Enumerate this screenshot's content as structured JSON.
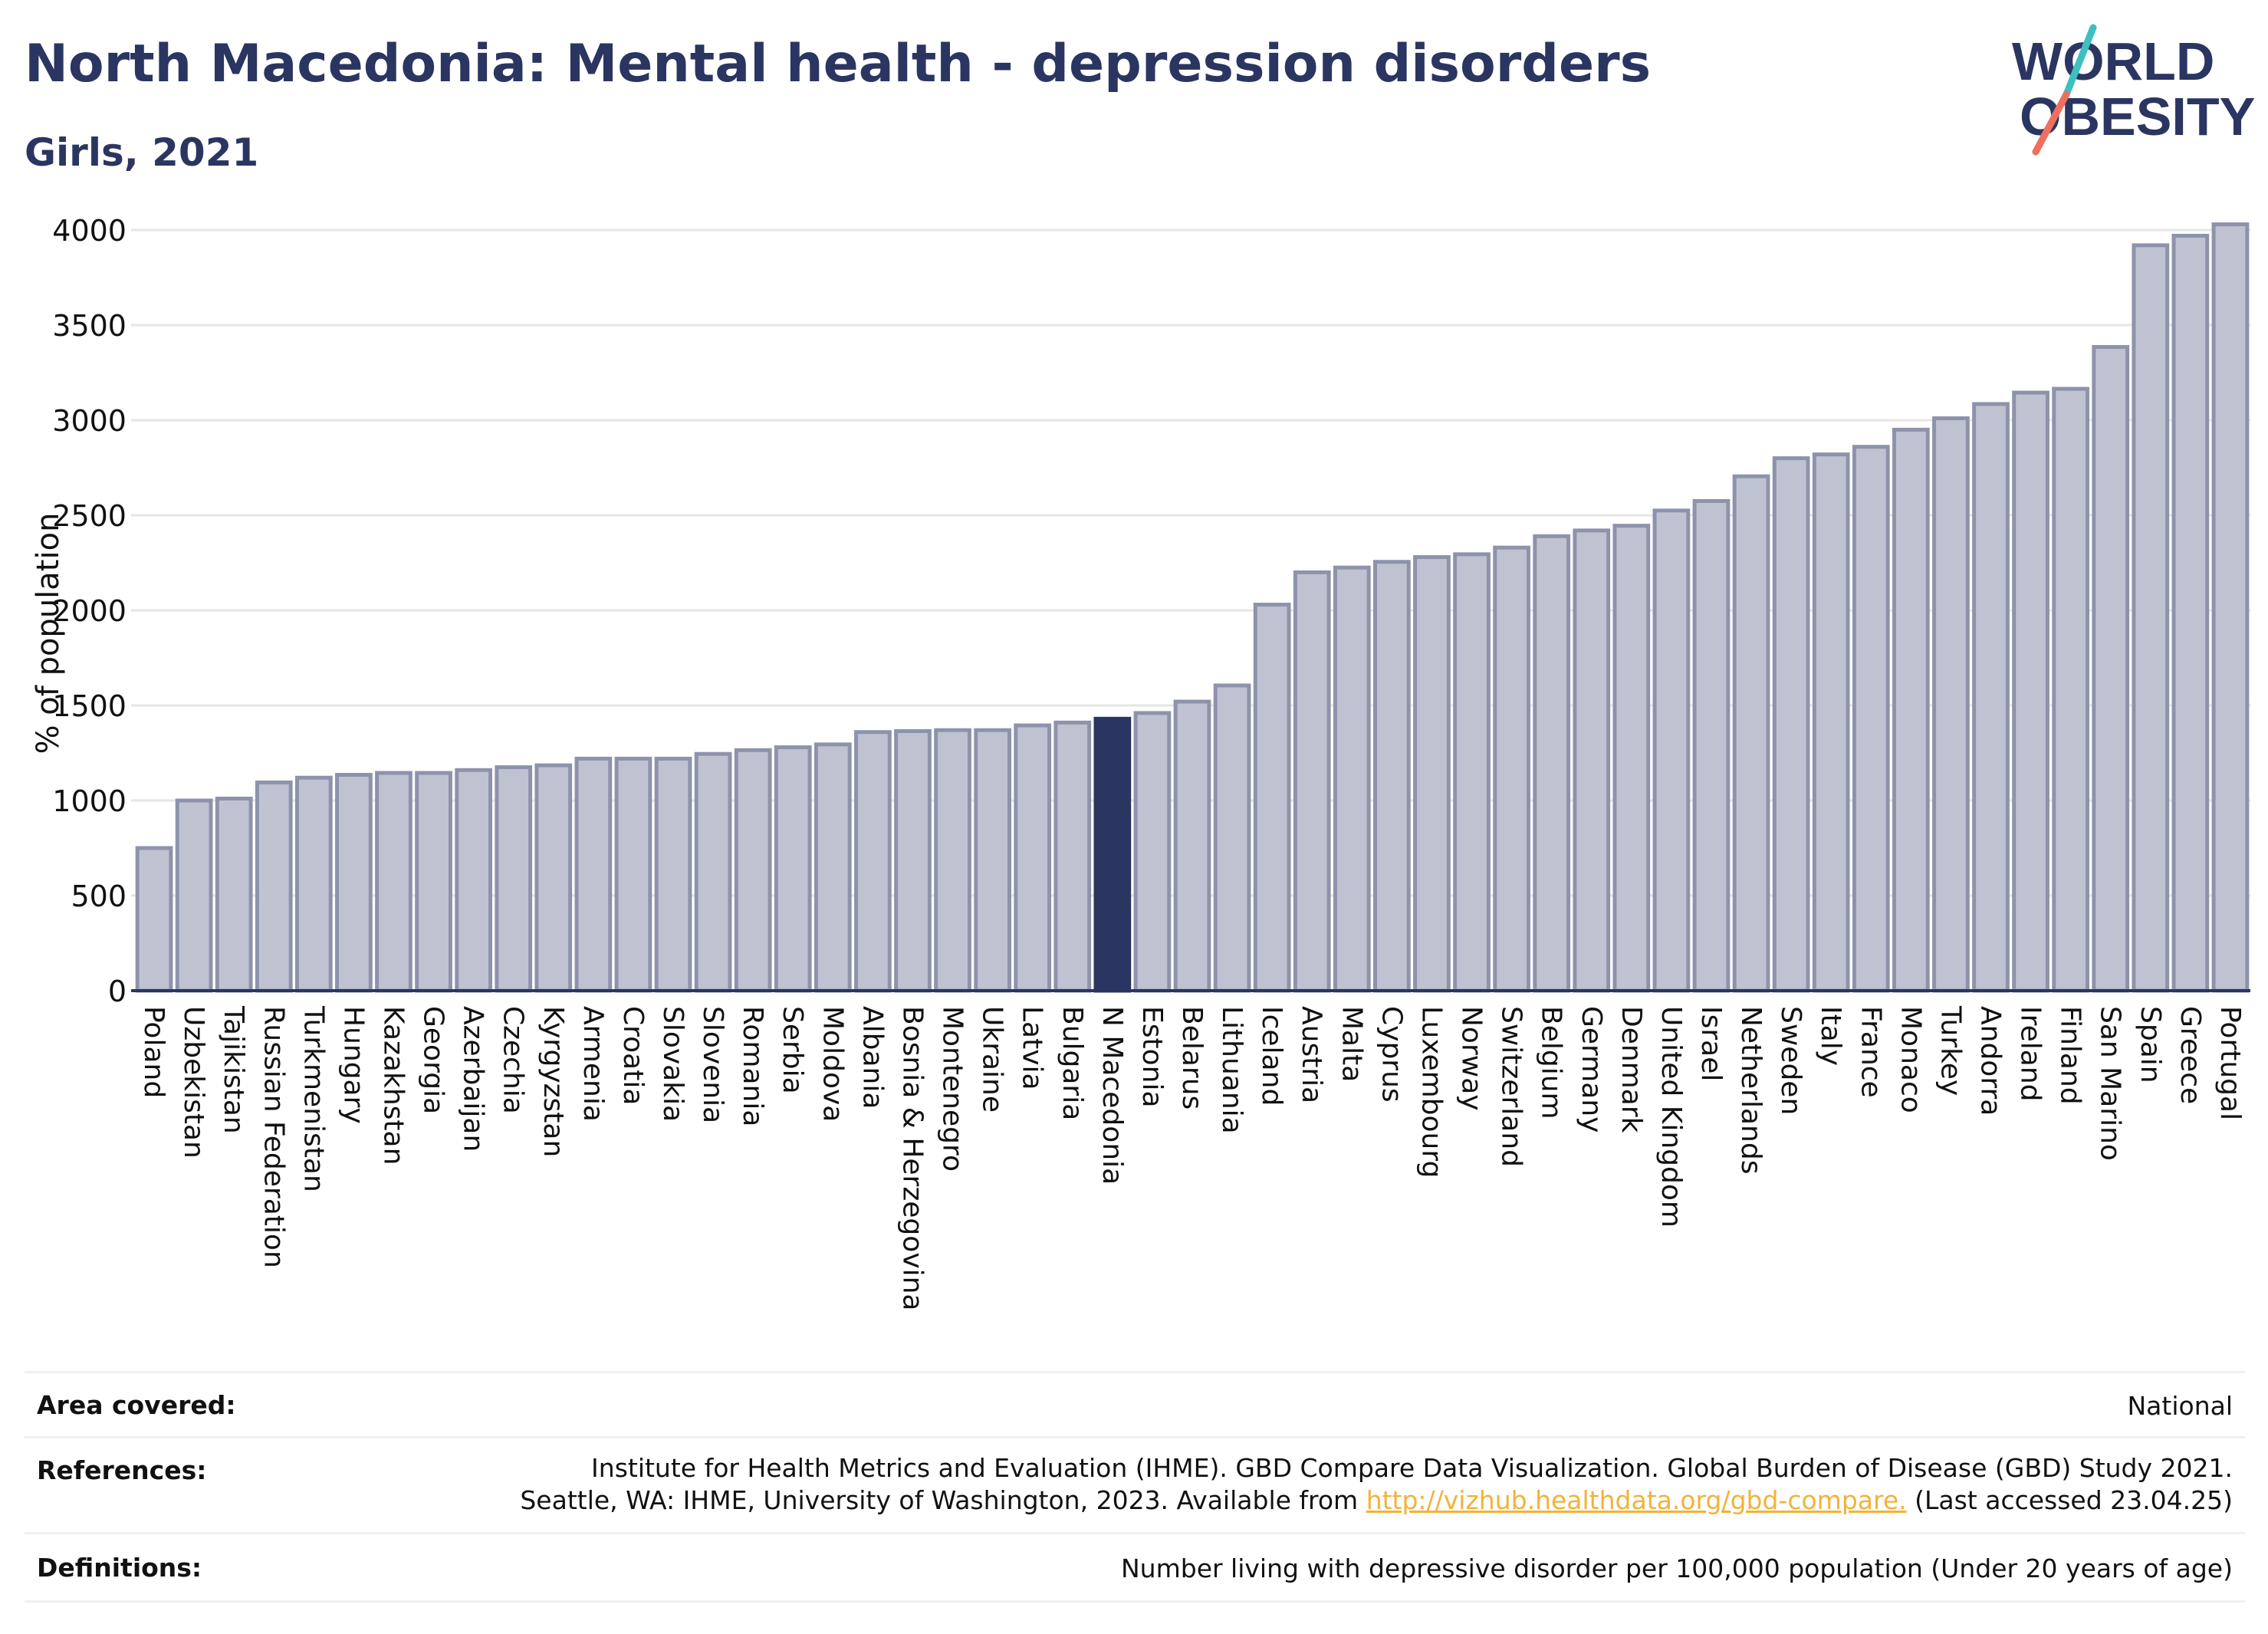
{
  "header": {
    "title": "North Macedonia: Mental health - depression disorders",
    "subtitle": "Girls, 2021"
  },
  "logo": {
    "line1": "WORLD",
    "line2": "OBESITY"
  },
  "chart_data": {
    "type": "bar",
    "ylabel": "% of population",
    "xlabel": "",
    "ylim": [
      0,
      4000
    ],
    "yticks": [
      0,
      500,
      1000,
      1500,
      2000,
      2500,
      3000,
      3500,
      4000
    ],
    "grid": true,
    "highlight": "N Macedonia",
    "colors": {
      "bar": "#bfc3d1",
      "bar_border": "#8d93ab",
      "highlight": "#2b3561",
      "grid": "#e6e6e6",
      "axis": "#2b3561"
    },
    "categories": [
      "Poland",
      "Uzbekistan",
      "Tajikistan",
      "Russian Federation",
      "Turkmenistan",
      "Hungary",
      "Kazakhstan",
      "Georgia",
      "Azerbaijan",
      "Czechia",
      "Kyrgyzstan",
      "Armenia",
      "Croatia",
      "Slovakia",
      "Slovenia",
      "Romania",
      "Serbia",
      "Moldova",
      "Albania",
      "Bosnia & Herzegovina",
      "Montenegro",
      "Ukraine",
      "Latvia",
      "Bulgaria",
      "N Macedonia",
      "Estonia",
      "Belarus",
      "Lithuania",
      "Iceland",
      "Austria",
      "Malta",
      "Cyprus",
      "Luxembourg",
      "Norway",
      "Switzerland",
      "Belgium",
      "Germany",
      "Denmark",
      "United Kingdom",
      "Israel",
      "Netherlands",
      "Sweden",
      "Italy",
      "France",
      "Monaco",
      "Turkey",
      "Andorra",
      "Ireland",
      "Finland",
      "San Marino",
      "Spain",
      "Greece",
      "Portugal"
    ],
    "values": [
      750,
      1000,
      1010,
      1095,
      1120,
      1135,
      1145,
      1145,
      1160,
      1175,
      1185,
      1220,
      1220,
      1220,
      1245,
      1265,
      1280,
      1295,
      1360,
      1365,
      1370,
      1370,
      1395,
      1410,
      1430,
      1460,
      1520,
      1605,
      2030,
      2200,
      2225,
      2255,
      2280,
      2295,
      2330,
      2390,
      2420,
      2445,
      2525,
      2575,
      2705,
      2800,
      2820,
      2860,
      2950,
      3010,
      3085,
      3145,
      3165,
      3385,
      3920,
      3970,
      4030
    ]
  },
  "footer": {
    "area_label": "Area covered:",
    "area_value": "National",
    "references_label": "References:",
    "references_line1": "Institute for Health Metrics and Evaluation (IHME). GBD Compare Data Visualization. Global Burden of Disease (GBD) Study 2021.",
    "references_line2_pre": "Seattle, WA: IHME, University of Washington, 2023. Available from ",
    "references_link": "http://vizhub.healthdata.org/gbd-compare.",
    "references_line2_post": " (Last accessed 23.04.25)",
    "definitions_label": "Definitions:",
    "definitions_value": "Number living with depressive disorder per 100,000 population (Under 20 years of age)"
  }
}
